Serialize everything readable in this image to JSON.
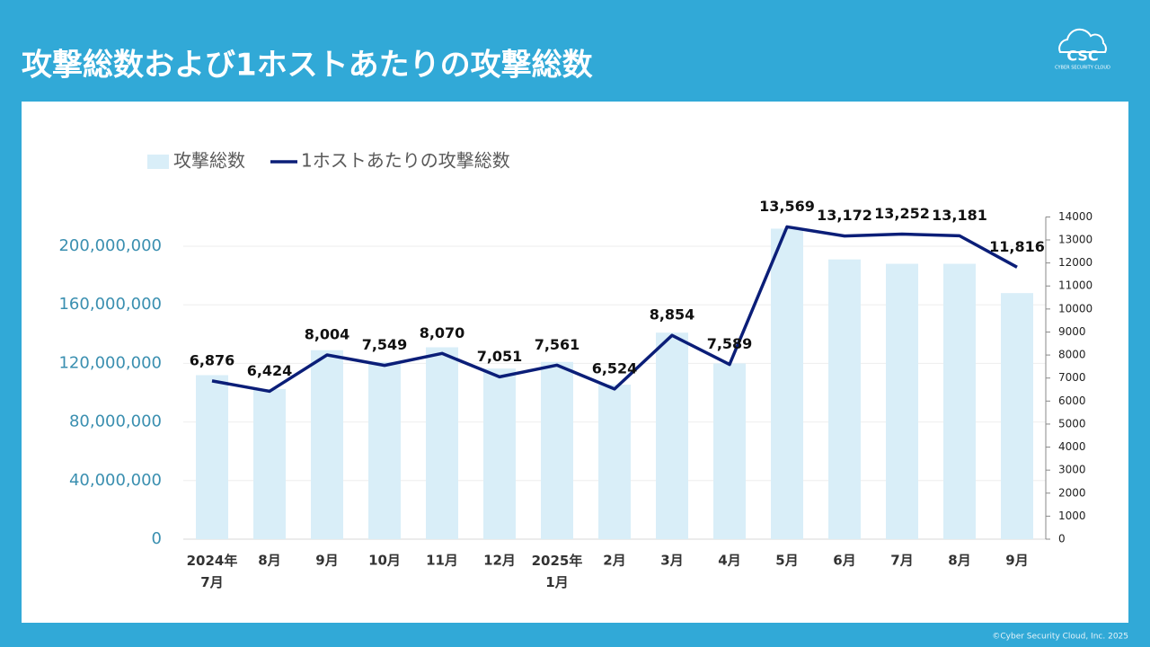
{
  "header": {
    "title": "攻撃総数および1ホストあたりの攻撃総数",
    "logo": "CSC",
    "logo_sub": "CYBER SECURITY CLOUD"
  },
  "footer": "©Cyber Security Cloud, Inc. 2025",
  "chart_data": {
    "type": "combo",
    "categories": [
      "2024年\n7月",
      "8月",
      "9月",
      "10月",
      "11月",
      "12月",
      "2025年\n1月",
      "2月",
      "3月",
      "4月",
      "5月",
      "6月",
      "7月",
      "8月",
      "9月"
    ],
    "series": [
      {
        "name": "攻撃総数",
        "type": "bar",
        "color": "#d9eef8",
        "values": [
          112000000,
          102500000,
          129000000,
          121000000,
          131000000,
          116500000,
          121000000,
          105500000,
          141000000,
          120000000,
          212000000,
          191000000,
          188000000,
          188000000,
          168000000
        ]
      },
      {
        "name": "1ホストあたりの攻撃総数",
        "type": "line",
        "axis": "y2",
        "color": "#0b1e78",
        "values": [
          6876,
          6424,
          8004,
          7549,
          8070,
          7051,
          7561,
          6524,
          8854,
          7589,
          13569,
          13172,
          13252,
          13181,
          11816
        ],
        "value_labels": [
          "6,876",
          "6,424",
          "8,004",
          "7,549",
          "8,070",
          "7,051",
          "7,561",
          "6,524",
          "8,854",
          "7,589",
          "13,569",
          "13,172",
          "13,252",
          "13,181",
          "11,816"
        ]
      }
    ],
    "ylim": [
      0,
      220000000
    ],
    "yticks": [
      0,
      {
        "value": 40000000,
        "label": "40,000,000"
      },
      {
        "value": 80000000,
        "label": "80,000,000"
      },
      {
        "value": 120000000,
        "label": "120,000,000"
      },
      {
        "value": 160000000,
        "label": "160,000,000"
      },
      {
        "value": 200000000,
        "label": "200,000,000"
      }
    ],
    "y2lim": [
      0,
      14000
    ],
    "y2ticks": [
      0,
      1000,
      2000,
      3000,
      4000,
      5000,
      6000,
      7000,
      8000,
      9000,
      10000,
      11000,
      12000,
      13000,
      14000
    ],
    "grid": true
  }
}
